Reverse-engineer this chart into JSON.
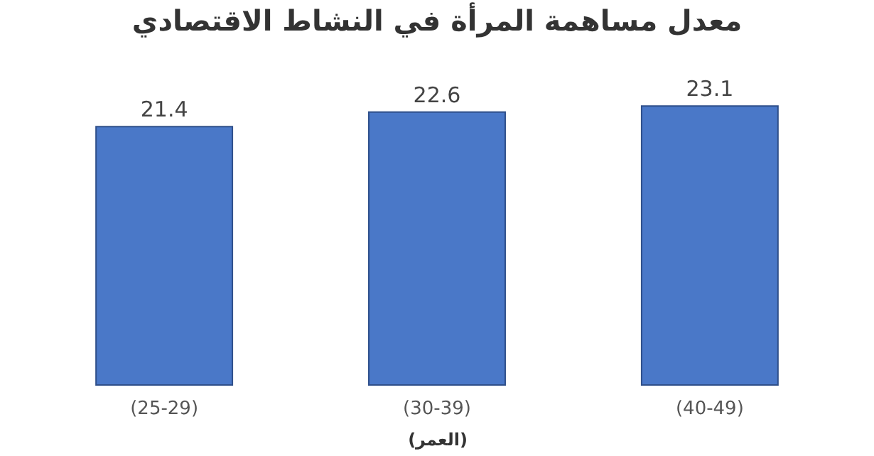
{
  "chart_data": {
    "type": "bar",
    "title": "معدل مساهمة المرأة في النشاط الاقتصادي",
    "xlabel": "(العمر)",
    "categories": [
      "(25-29)",
      "(30-39)",
      "(40-49)"
    ],
    "values": [
      21.4,
      22.6,
      23.1
    ],
    "color": "#4a78c8",
    "data_labels": true
  }
}
